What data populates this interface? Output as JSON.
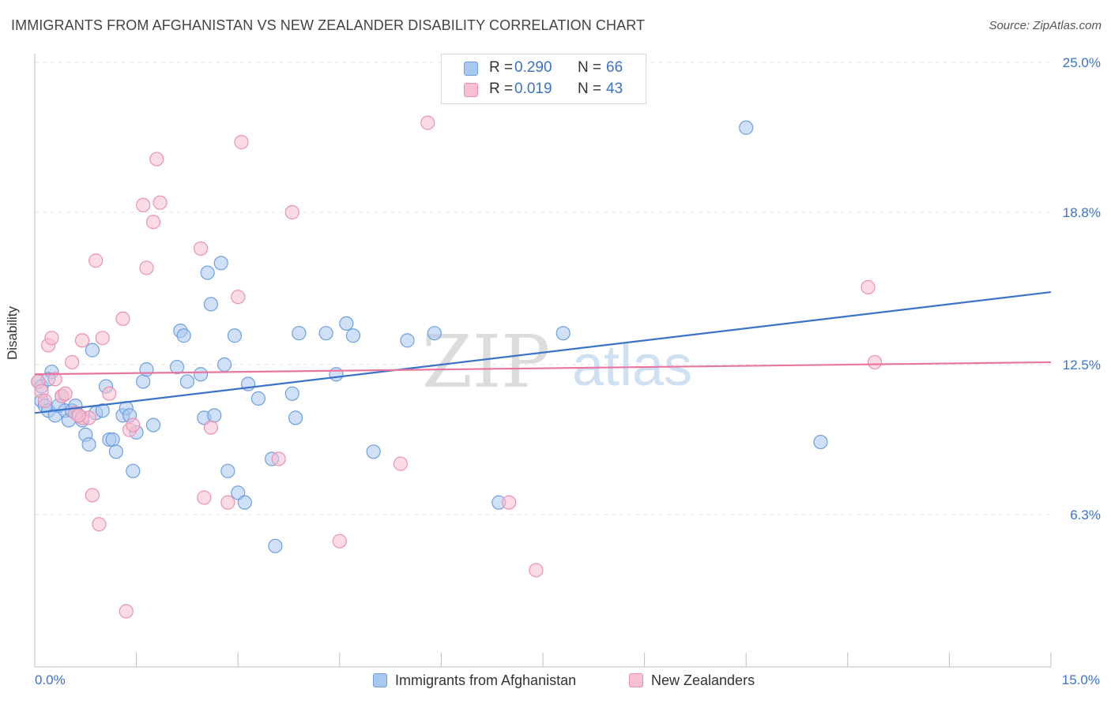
{
  "title": "IMMIGRANTS FROM AFGHANISTAN VS NEW ZEALANDER DISABILITY CORRELATION CHART",
  "source": "Source: ZipAtlas.com",
  "watermark": {
    "zip": "ZIP",
    "atlas": "atlas"
  },
  "legend": {
    "r_label": "R =",
    "n_label": "N =",
    "entries": [
      {
        "name": "Immigrants from Afghanistan",
        "r": "0.290",
        "n": "66",
        "fill": "#a9c8f0",
        "stroke": "#6f9fe0"
      },
      {
        "name": "New Zealanders",
        "r": "0.019",
        "n": "43",
        "fill": "#f7bfd0",
        "stroke": "#ec90b0"
      }
    ]
  },
  "chart_data": {
    "type": "scatter",
    "title": "IMMIGRANTS FROM AFGHANISTAN VS NEW ZEALANDER DISABILITY CORRELATION CHART",
    "xlabel": "",
    "ylabel": "Disability",
    "xlim": [
      0,
      15
    ],
    "ylim": [
      0,
      25
    ],
    "x_tick_labels": [
      "0.0%",
      "15.0%"
    ],
    "y_ticks": [
      6.3,
      12.5,
      18.8,
      25.0
    ],
    "y_tick_labels": [
      "6.3%",
      "12.5%",
      "18.8%",
      "25.0%"
    ],
    "grid": true,
    "legend_position": "top-center",
    "series": [
      {
        "name": "Immigrants from Afghanistan",
        "color": "#3b73c8",
        "marker_fill": "#a9c8f0",
        "marker_stroke": "#6f9fe0",
        "r": 0.29,
        "n": 66,
        "trend": {
          "x": [
            0,
            15
          ],
          "y": [
            10.5,
            15.5
          ]
        },
        "points": [
          [
            0.05,
            11.8
          ],
          [
            0.1,
            11.0
          ],
          [
            0.15,
            10.8
          ],
          [
            0.2,
            10.6
          ],
          [
            0.25,
            12.2
          ],
          [
            0.3,
            10.4
          ],
          [
            0.35,
            10.8
          ],
          [
            0.4,
            11.2
          ],
          [
            0.45,
            10.6
          ],
          [
            0.5,
            10.2
          ],
          [
            0.55,
            10.6
          ],
          [
            0.6,
            10.8
          ],
          [
            0.65,
            10.4
          ],
          [
            0.7,
            10.2
          ],
          [
            0.75,
            9.6
          ],
          [
            0.8,
            9.2
          ],
          [
            0.85,
            13.1
          ],
          [
            0.9,
            10.5
          ],
          [
            1.0,
            10.6
          ],
          [
            1.05,
            11.6
          ],
          [
            1.1,
            9.4
          ],
          [
            1.15,
            9.4
          ],
          [
            1.2,
            8.9
          ],
          [
            1.3,
            10.4
          ],
          [
            1.35,
            10.7
          ],
          [
            1.4,
            10.4
          ],
          [
            1.45,
            8.1
          ],
          [
            1.5,
            9.7
          ],
          [
            1.6,
            11.8
          ],
          [
            1.65,
            12.3
          ],
          [
            1.75,
            10.0
          ],
          [
            2.1,
            12.4
          ],
          [
            2.15,
            13.9
          ],
          [
            2.2,
            13.7
          ],
          [
            2.25,
            11.8
          ],
          [
            2.45,
            12.1
          ],
          [
            2.5,
            10.3
          ],
          [
            2.55,
            16.3
          ],
          [
            2.6,
            15.0
          ],
          [
            2.65,
            10.4
          ],
          [
            2.75,
            16.7
          ],
          [
            2.8,
            12.5
          ],
          [
            2.85,
            8.1
          ],
          [
            2.95,
            13.7
          ],
          [
            3.0,
            7.2
          ],
          [
            3.1,
            6.8
          ],
          [
            3.15,
            11.7
          ],
          [
            3.3,
            11.1
          ],
          [
            3.5,
            8.6
          ],
          [
            3.55,
            5.0
          ],
          [
            3.8,
            11.3
          ],
          [
            3.85,
            10.3
          ],
          [
            3.9,
            13.8
          ],
          [
            4.3,
            13.8
          ],
          [
            4.45,
            12.1
          ],
          [
            4.6,
            14.2
          ],
          [
            4.7,
            13.7
          ],
          [
            5.0,
            8.9
          ],
          [
            5.5,
            13.5
          ],
          [
            5.9,
            13.8
          ],
          [
            6.85,
            6.8
          ],
          [
            7.8,
            13.8
          ],
          [
            10.5,
            22.3
          ],
          [
            11.6,
            9.3
          ],
          [
            0.1,
            11.6
          ],
          [
            0.2,
            11.9
          ]
        ]
      },
      {
        "name": "New Zealanders",
        "color": "#e8779f",
        "marker_fill": "#f7bfd0",
        "marker_stroke": "#ec90b0",
        "r": 0.019,
        "n": 43,
        "trend": {
          "x": [
            0,
            15
          ],
          "y": [
            12.1,
            12.6
          ]
        },
        "points": [
          [
            0.05,
            11.8
          ],
          [
            0.1,
            11.4
          ],
          [
            0.15,
            11.0
          ],
          [
            0.2,
            13.3
          ],
          [
            0.3,
            11.9
          ],
          [
            0.4,
            11.2
          ],
          [
            0.45,
            11.3
          ],
          [
            0.55,
            12.6
          ],
          [
            0.6,
            10.5
          ],
          [
            0.7,
            10.3
          ],
          [
            0.8,
            10.3
          ],
          [
            0.85,
            7.1
          ],
          [
            0.9,
            16.8
          ],
          [
            0.95,
            5.9
          ],
          [
            1.0,
            13.6
          ],
          [
            1.1,
            11.3
          ],
          [
            1.3,
            14.4
          ],
          [
            1.35,
            2.3
          ],
          [
            1.4,
            9.8
          ],
          [
            1.45,
            10.0
          ],
          [
            1.6,
            19.1
          ],
          [
            1.65,
            16.5
          ],
          [
            1.75,
            18.4
          ],
          [
            1.8,
            21.0
          ],
          [
            1.85,
            19.2
          ],
          [
            2.45,
            17.3
          ],
          [
            2.5,
            7.0
          ],
          [
            2.6,
            9.9
          ],
          [
            2.85,
            6.8
          ],
          [
            3.0,
            15.3
          ],
          [
            3.05,
            21.7
          ],
          [
            3.6,
            8.6
          ],
          [
            3.8,
            18.8
          ],
          [
            4.5,
            5.2
          ],
          [
            5.4,
            8.4
          ],
          [
            5.8,
            22.5
          ],
          [
            7.0,
            6.8
          ],
          [
            7.4,
            4.0
          ],
          [
            12.3,
            15.7
          ],
          [
            12.4,
            12.6
          ],
          [
            0.25,
            13.6
          ],
          [
            0.7,
            13.5
          ],
          [
            0.65,
            10.4
          ]
        ]
      }
    ]
  }
}
